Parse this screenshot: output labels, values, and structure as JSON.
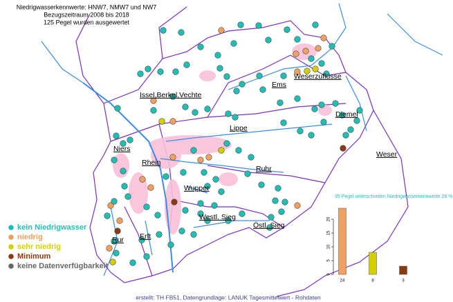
{
  "header": {
    "lines": [
      "Niedrigwasserkennwerte: HNW7, NMW7 und NW7",
      "Bezugszeitraum 2008 bis 2018",
      "125 Pegel wurden ausgewertet"
    ]
  },
  "legend": [
    {
      "label": "kein Niedrigwasser",
      "color": "#1fbfb5"
    },
    {
      "label": "niedrig",
      "color": "#f0a060"
    },
    {
      "label": "sehr niedrig",
      "color": "#d4d000"
    },
    {
      "label": "Minimum",
      "color": "#8b3a10"
    },
    {
      "label": "keine Datenverfügbarkeit",
      "color": "#666666"
    }
  ],
  "regions": [
    "Ems",
    "Weserzuflüsse",
    "Issel,Berkel,Vechte",
    "Diemel",
    "Lippe",
    "Weser",
    "Niers",
    "Rhein",
    "Ruhr",
    "Wupper",
    "Westl. Sieg",
    "Östl. Sieg",
    "Rur",
    "Erft"
  ],
  "chart_data": {
    "type": "bar",
    "title": "35 Pegel unterschreiten Niedrigwasserkennwerte 28 %",
    "values": [
      24,
      8,
      3
    ],
    "colors": [
      "#f0a060",
      "#d4d000",
      "#8b3a10"
    ],
    "ylim": [
      0,
      25
    ],
    "yticks": [
      0,
      5,
      10,
      15,
      20
    ]
  },
  "footer": "erstellt: TH FB51, Datengrundlage: LANUK Tagesmittelwert - Rohdaten"
}
